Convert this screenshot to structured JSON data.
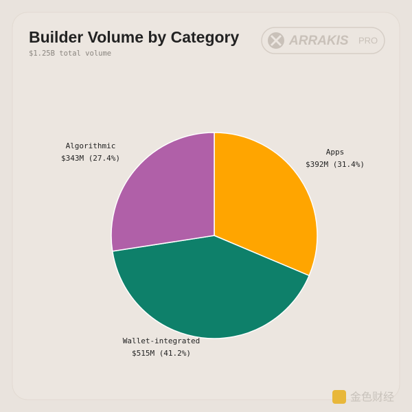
{
  "chart_data": {
    "type": "pie",
    "title": "Builder Volume by Category",
    "subtitle": "$1.25B total volume",
    "categories": [
      "Apps",
      "Wallet-integrated",
      "Algorithmic"
    ],
    "values": [
      392,
      515,
      343
    ],
    "value_labels": [
      "$392M (31.4%)",
      "$515M (41.2%)",
      "$343M (27.4%)"
    ],
    "colors": [
      "#ffa500",
      "#0e806a",
      "#b060a8"
    ]
  },
  "branding": {
    "logo": "ARRAKIS",
    "badge": "PRO"
  },
  "watermark": "金色财经"
}
